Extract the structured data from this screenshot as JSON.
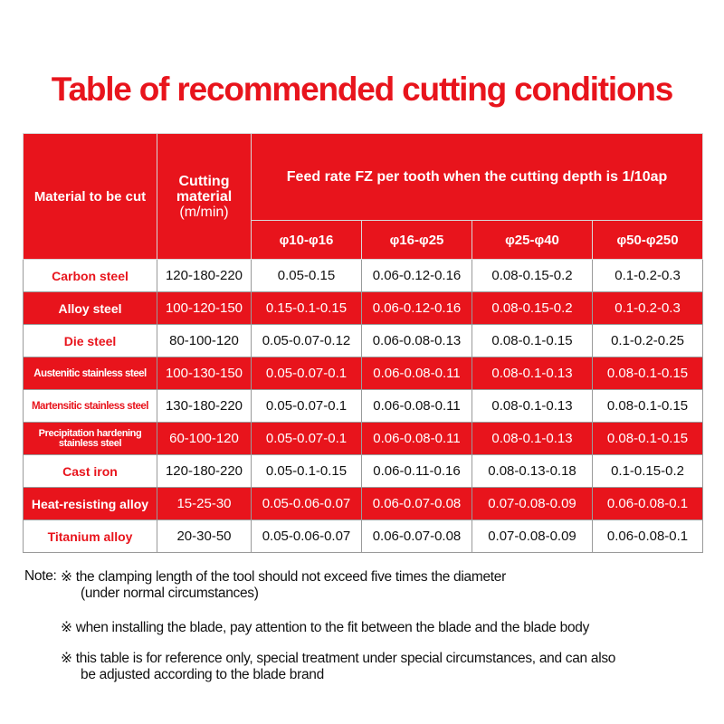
{
  "title": "Table of recommended cutting conditions",
  "header": {
    "material_col": "Material to be cut",
    "cutting_material_line1": "Cutting",
    "cutting_material_line2": "material",
    "cutting_material_unit": "(m/min)",
    "feed_rate": "Feed rate FZ per tooth when the cutting depth is 1/10ap",
    "diameters": [
      "φ10-φ16",
      "φ16-φ25",
      "φ25-φ40",
      "φ50-φ250"
    ]
  },
  "rows": [
    {
      "name": "Carbon steel",
      "speed": "120-180-220",
      "v": [
        "0.05-0.15",
        "0.06-0.12-0.16",
        "0.08-0.15-0.2",
        "0.1-0.2-0.3"
      ]
    },
    {
      "name": "Alloy steel",
      "speed": "100-120-150",
      "v": [
        "0.15-0.1-0.15",
        "0.06-0.12-0.16",
        "0.08-0.15-0.2",
        "0.1-0.2-0.3"
      ]
    },
    {
      "name": "Die steel",
      "speed": "80-100-120",
      "v": [
        "0.05-0.07-0.12",
        "0.06-0.08-0.13",
        "0.08-0.1-0.15",
        "0.1-0.2-0.25"
      ]
    },
    {
      "name": "Austenitic stainless steel",
      "speed": "100-130-150",
      "v": [
        "0.05-0.07-0.1",
        "0.06-0.08-0.11",
        "0.08-0.1-0.13",
        "0.08-0.1-0.15"
      ]
    },
    {
      "name": "Martensitic stainless steel",
      "speed": "130-180-220",
      "v": [
        "0.05-0.07-0.1",
        "0.06-0.08-0.11",
        "0.08-0.1-0.13",
        "0.08-0.1-0.15"
      ]
    },
    {
      "name_line1": "Precipitation hardening",
      "name_line2": "stainless steel",
      "speed": "60-100-120",
      "v": [
        "0.05-0.07-0.1",
        "0.06-0.08-0.11",
        "0.08-0.1-0.13",
        "0.08-0.1-0.15"
      ]
    },
    {
      "name": "Cast iron",
      "speed": "120-180-220",
      "v": [
        "0.05-0.1-0.15",
        "0.06-0.11-0.16",
        "0.08-0.13-0.18",
        "0.1-0.15-0.2"
      ]
    },
    {
      "name": "Heat-resisting alloy",
      "speed": "15-25-30",
      "v": [
        "0.05-0.06-0.07",
        "0.06-0.07-0.08",
        "0.07-0.08-0.09",
        "0.06-0.08-0.1"
      ]
    },
    {
      "name": "Titanium alloy",
      "speed": "20-30-50",
      "v": [
        "0.05-0.06-0.07",
        "0.06-0.07-0.08",
        "0.07-0.08-0.09",
        "0.06-0.08-0.1"
      ]
    }
  ],
  "notes": {
    "label": "Note:",
    "mark": "※",
    "items": [
      {
        "line1": "the clamping length of the tool should not exceed five times the diameter",
        "line2": "(under normal circumstances)"
      },
      {
        "line1": "when installing the blade, pay attention to the fit between the blade and the blade body",
        "line2": ""
      },
      {
        "line1": "this table is for reference only, special treatment under special circumstances, and can also",
        "line2": "be adjusted according to the blade brand"
      }
    ]
  },
  "colors": {
    "accent": "#e8141c",
    "text": "#111111",
    "border": "#9a9a9a"
  }
}
